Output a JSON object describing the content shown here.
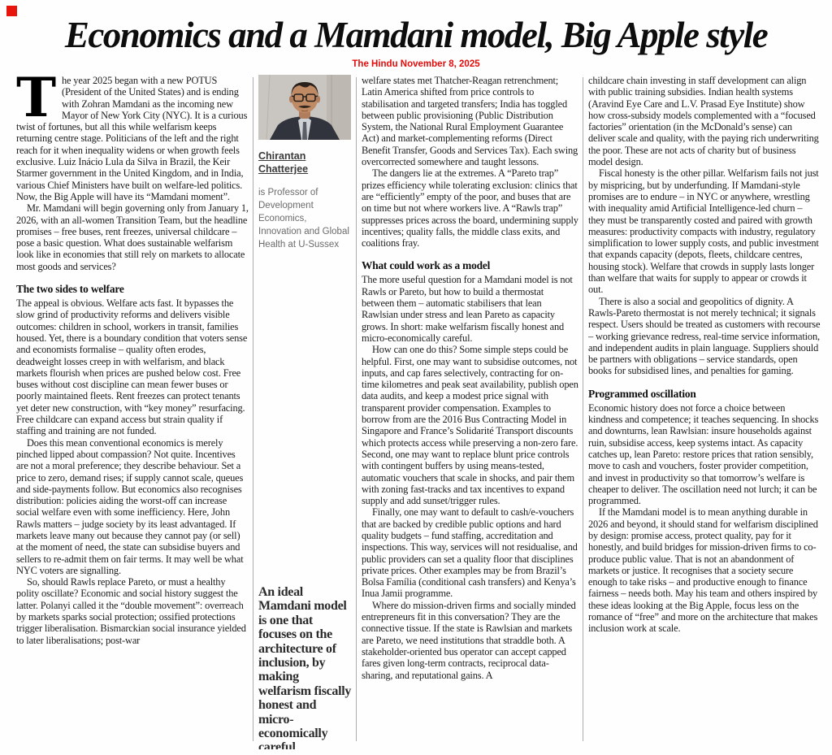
{
  "headline": "Economics and a Mamdani model, Big Apple style",
  "dateline": "The Hindu November 8, 2025",
  "author": {
    "name": "Chirantan Chatterjee",
    "bio": "is Professor of Development Economics, Innovation and Global Health at U-Sussex",
    "photo_icon": "portrait-photo"
  },
  "pull_quote": "An ideal Mamdani model is one that focuses on the architecture of inclusion, by making welfarism fiscally honest and micro-economically careful",
  "accent_colors": {
    "red": "#e50b0b",
    "text": "#1c1c1c",
    "rule": "#adadad"
  },
  "columns": {
    "col1": [
      {
        "type": "paragraph",
        "dropcap": "T",
        "text": "he year 2025 began with a new POTUS (President of the United States) and is ending with Zohran Mamdani as the incoming new Mayor of New York City (NYC). It is a curious twist of fortunes, but all this while welfarism keeps returning centre stage. Politicians of the left and the right reach for it when inequality widens or when growth feels exclusive. Luiz Inácio Lula da Silva in Brazil, the Keir Starmer government in the United Kingdom, and in India, various Chief Ministers have built on welfare-led politics. Now, the Big Apple will have its “Mamdani moment”."
      },
      {
        "type": "paragraph",
        "indent": true,
        "text": "Mr. Mamdani will begin governing only from January 1, 2026, with an all-women Transition Team, but the headline promises – free buses, rent freezes, universal childcare – pose a basic question. What does sustainable welfarism look like in economies that still rely on markets to allocate most goods and services?"
      },
      {
        "type": "heading",
        "text": "The two sides to welfare"
      },
      {
        "type": "paragraph",
        "text": "The appeal is obvious. Welfare acts fast. It bypasses the slow grind of productivity reforms and delivers visible outcomes: children in school, workers in transit, families housed. Yet, there is a boundary condition that voters sense and economists formalise – quality often erodes, deadweight losses creep in with welfarism, and black markets flourish when prices are pushed below cost. Free buses without cost discipline can mean fewer buses or poorly maintained fleets. Rent freezes can protect tenants yet deter new construction, with “key money” resurfacing. Free childcare can expand access but strain quality if staffing and training are not funded."
      },
      {
        "type": "paragraph",
        "indent": true,
        "text": "Does this mean conventional economics is merely pinched lipped about compassion? Not quite. Incentives are not a moral preference; they describe behaviour. Set a price to zero, demand rises; if supply cannot scale, queues and side-payments follow. But economics also recognises distribution: policies aiding the worst-off can increase social welfare even with some inefficiency. Here, John Rawls matters – judge society by its least advantaged. If markets leave many out because they cannot pay (or sell) at the moment of need, the state can subsidise buyers and sellers to re-admit them on fair terms. It may well be what NYC voters are signalling."
      },
      {
        "type": "paragraph",
        "indent": true,
        "text": "So, should Rawls replace Pareto, or must a healthy polity oscillate? Economic and social history suggest the latter. Polanyi called it the “double movement”: overreach by markets sparks social protection; ossified protections trigger liberalisation. Bismarckian social insurance yielded to later liberalisations; post-war"
      }
    ],
    "col2": [
      {
        "type": "paragraph",
        "text": "welfare states met Thatcher-Reagan retrenchment; Latin America shifted from price controls to stabilisation and targeted transfers; India has toggled between public provisioning (Public Distribution System, the National Rural Employment Guarantee Act) and market-complementing reforms (Direct Benefit Transfer, Goods and Services Tax). Each swing overcorrected somewhere and taught lessons."
      },
      {
        "type": "paragraph",
        "indent": true,
        "text": "The dangers lie at the extremes. A “Pareto trap” prizes efficiency while tolerating exclusion: clinics that are “efficiently” empty of the poor, and buses that are on time but not where workers live. A “Rawls trap” suppresses prices across the board, undermining supply incentives; quality falls, the middle class exits, and coalitions fray."
      },
      {
        "type": "heading",
        "text": "What could work as a model"
      },
      {
        "type": "paragraph",
        "text": "The more useful question for a Mamdani model is not Rawls or Pareto, but how to build a thermostat between them – automatic stabilisers that lean Rawlsian under stress and lean Pareto as capacity grows. In short: make welfarism fiscally honest and micro-economically careful."
      },
      {
        "type": "paragraph",
        "indent": true,
        "text": "How can one do this? Some simple steps could be helpful. First, one may want to subsidise outcomes, not inputs, and cap fares selectively, contracting for on-time kilometres and peak seat availability, publish open data audits, and keep a modest price signal with transparent provider compensation. Examples to borrow from are the 2016 Bus Contracting Model in Singapore and France’s Solidarité Transport discounts which protects access while preserving a non-zero fare. Second, one may want to replace blunt price controls with contingent buffers by using means-tested, automatic vouchers that scale in shocks, and pair them with zoning fast-tracks and tax incentives to expand supply and add sunset/trigger rules."
      },
      {
        "type": "paragraph",
        "indent": true,
        "text": "Finally, one may want to default to cash/e-vouchers that are backed by credible public options and hard quality budgets – fund staffing, accreditation and inspections. This way, services will not residualise, and public providers can set a quality floor that disciplines private prices. Other examples may be from Brazil’s Bolsa Família (conditional cash transfers) and Kenya’s Inua Jamii programme."
      },
      {
        "type": "paragraph",
        "indent": true,
        "text": "Where do mission-driven firms and socially minded entrepreneurs fit in this conversation? They are the connective tissue. If the state is Rawlsian and markets are Pareto, we need institutions that straddle both. A stakeholder-oriented bus operator can accept capped fares given long-term contracts, reciprocal data-sharing, and reputational gains. A"
      }
    ],
    "col3": [
      {
        "type": "paragraph",
        "text": "childcare chain investing in staff development can align with public training subsidies. Indian health systems (Aravind Eye Care and L.V. Prasad Eye Institute) show how cross-subsidy models complemented with a “focused factories” orientation (in the McDonald’s sense) can deliver scale and quality, with the paying rich underwriting the poor. These are not acts of charity but of business model design."
      },
      {
        "type": "paragraph",
        "indent": true,
        "text": "Fiscal honesty is the other pillar. Welfarism fails not just by mispricing, but by underfunding. If Mamdani-style promises are to endure – in NYC or anywhere, wrestling with inequality amid Artificial Intelligence-led churn – they must be transparently costed and paired with growth measures: productivity compacts with industry, regulatory simplification to lower supply costs, and public investment that expands capacity (depots, fleets, childcare centres, housing stock). Welfare that crowds in supply lasts longer than welfare that waits for supply to appear or crowds it out."
      },
      {
        "type": "paragraph",
        "indent": true,
        "text": "There is also a social and geopolitics of dignity. A Rawls-Pareto thermostat is not merely technical; it signals respect. Users should be treated as customers with recourse – working grievance redress, real-time service information, and independent audits in plain language. Suppliers should be partners with obligations – service standards, open books for subsidised lines, and penalties for gaming."
      },
      {
        "type": "heading",
        "text": "Programmed oscillation"
      },
      {
        "type": "paragraph",
        "text": "Economic history does not force a choice between kindness and competence; it teaches sequencing. In shocks and downturns, lean Rawlsian: insure households against ruin, subsidise access, keep systems intact. As capacity catches up, lean Pareto: restore prices that ration sensibly, move to cash and vouchers, foster provider competition, and invest in productivity so that tomorrow’s welfare is cheaper to deliver. The oscillation need not lurch; it can be programmed."
      },
      {
        "type": "paragraph",
        "indent": true,
        "text": "If the Mamdani model is to mean anything durable in 2026 and beyond, it should stand for welfarism disciplined by design: promise access, protect quality, pay for it honestly, and build bridges for mission-driven firms to co-produce public value. That is not an abandonment of markets or justice. It recognises that a society secure enough to take risks – and productive enough to finance fairness – needs both. May his team and others inspired by these ideas looking at the Big Apple, focus less on the romance of “free” and more on the architecture that makes inclusion work at scale."
      }
    ]
  }
}
